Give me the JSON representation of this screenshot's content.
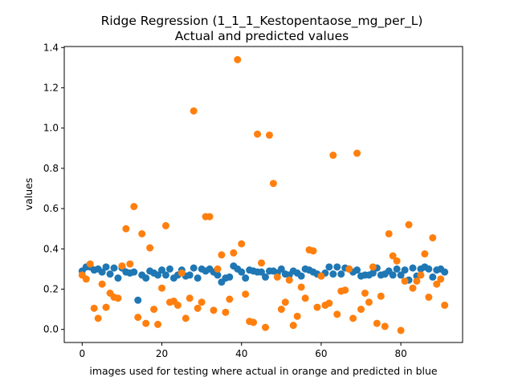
{
  "chart_data": {
    "type": "scatter",
    "title": "Ridge Regression (1_1_1_Kestopentaose_mg_per_L)",
    "subtitle": "Actual and predicted values",
    "xlabel": "images used for testing where actual in orange and predicted in blue",
    "ylabel": "values",
    "xlim": [
      -4.5,
      95.5
    ],
    "ylim": [
      -0.065,
      1.405
    ],
    "xticks": [
      0,
      20,
      40,
      60,
      80
    ],
    "yticks": [
      0.0,
      0.2,
      0.4,
      0.6,
      0.8,
      1.0,
      1.2,
      1.4
    ],
    "ytick_labels": [
      "0.0",
      "0.2",
      "0.4",
      "0.6",
      "0.8",
      "1.0",
      "1.2",
      "1.4"
    ],
    "grid": false,
    "legend": false,
    "series": [
      {
        "color": "#1f77b4",
        "x": [
          0,
          1,
          2,
          3,
          4,
          5,
          6,
          7,
          8,
          9,
          10,
          11,
          12,
          13,
          14,
          15,
          16,
          17,
          18,
          19,
          20,
          21,
          22,
          23,
          24,
          25,
          26,
          27,
          28,
          29,
          30,
          31,
          32,
          33,
          34,
          35,
          36,
          37,
          38,
          39,
          40,
          41,
          42,
          43,
          44,
          45,
          46,
          47,
          48,
          49,
          50,
          51,
          52,
          53,
          54,
          55,
          56,
          57,
          58,
          59,
          60,
          61,
          62,
          63,
          64,
          65,
          66,
          67,
          68,
          69,
          70,
          71,
          72,
          73,
          74,
          75,
          76,
          77,
          78,
          79,
          80,
          81,
          82,
          83,
          84,
          85,
          86,
          87,
          88,
          89,
          90,
          91
        ],
        "y": [
          0.29,
          0.31,
          0.31,
          0.295,
          0.3,
          0.285,
          0.31,
          0.275,
          0.305,
          0.255,
          0.305,
          0.285,
          0.28,
          0.285,
          0.145,
          0.27,
          0.255,
          0.29,
          0.28,
          0.27,
          0.295,
          0.27,
          0.3,
          0.255,
          0.27,
          0.295,
          0.265,
          0.27,
          0.305,
          0.255,
          0.3,
          0.29,
          0.3,
          0.285,
          0.27,
          0.235,
          0.255,
          0.26,
          0.315,
          0.3,
          0.285,
          0.255,
          0.295,
          0.29,
          0.285,
          0.285,
          0.26,
          0.29,
          0.29,
          0.28,
          0.3,
          0.275,
          0.27,
          0.29,
          0.28,
          0.265,
          0.3,
          0.295,
          0.285,
          0.275,
          0.265,
          0.28,
          0.31,
          0.275,
          0.31,
          0.275,
          0.305,
          0.3,
          0.285,
          0.295,
          0.265,
          0.27,
          0.27,
          0.28,
          0.305,
          0.27,
          0.275,
          0.29,
          0.27,
          0.3,
          0.27,
          0.295,
          0.245,
          0.305,
          0.265,
          0.3,
          0.31,
          0.3,
          0.26,
          0.295,
          0.3,
          0.285
        ]
      },
      {
        "color": "#ff7f0e",
        "x": [
          0,
          1,
          2,
          3,
          4,
          5,
          6,
          7,
          8,
          9,
          10,
          11,
          12,
          13,
          14,
          15,
          16,
          17,
          18,
          19,
          20,
          21,
          22,
          23,
          24,
          25,
          26,
          27,
          28,
          29,
          30,
          31,
          32,
          33,
          34,
          35,
          36,
          37,
          38,
          39,
          40,
          41,
          42,
          43,
          44,
          45,
          46,
          47,
          48,
          49,
          50,
          51,
          52,
          53,
          54,
          55,
          56,
          57,
          58,
          59,
          60,
          61,
          62,
          63,
          64,
          65,
          66,
          67,
          68,
          69,
          70,
          71,
          72,
          73,
          74,
          75,
          76,
          77,
          78,
          79,
          80,
          81,
          82,
          83,
          84,
          85,
          86,
          87,
          88,
          89,
          90,
          91
        ],
        "y": [
          0.27,
          0.25,
          0.325,
          0.105,
          0.055,
          0.225,
          0.11,
          0.18,
          0.16,
          0.155,
          0.315,
          0.5,
          0.325,
          0.61,
          0.06,
          0.475,
          0.03,
          0.405,
          0.1,
          0.025,
          0.205,
          0.515,
          0.135,
          0.14,
          0.12,
          0.28,
          0.055,
          0.155,
          1.085,
          0.105,
          0.135,
          0.56,
          0.56,
          0.095,
          0.3,
          0.37,
          0.085,
          0.15,
          0.38,
          1.34,
          0.425,
          0.175,
          0.04,
          0.035,
          0.97,
          0.33,
          0.01,
          0.965,
          0.725,
          0.26,
          0.1,
          0.135,
          0.245,
          0.02,
          0.065,
          0.21,
          0.155,
          0.395,
          0.39,
          0.11,
          0.265,
          0.12,
          0.13,
          0.865,
          0.075,
          0.19,
          0.195,
          0.3,
          0.055,
          0.875,
          0.1,
          0.18,
          0.135,
          0.31,
          0.03,
          0.165,
          0.015,
          0.475,
          0.365,
          0.34,
          -0.005,
          0.24,
          0.52,
          0.205,
          0.24,
          0.27,
          0.375,
          0.16,
          0.455,
          0.225,
          0.25,
          0.12
        ]
      }
    ]
  }
}
